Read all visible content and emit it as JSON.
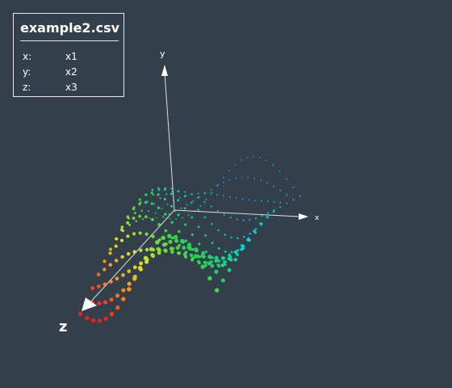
{
  "info_panel": {
    "title": "example2.csv",
    "rows": [
      {
        "key": "x:",
        "value": "x1"
      },
      {
        "key": "y:",
        "value": "x2"
      },
      {
        "key": "z:",
        "value": "x3"
      }
    ]
  },
  "axes": {
    "x_label": "x",
    "y_label": "y",
    "z_label": "z"
  },
  "colors": {
    "background": "#333f4a",
    "axis": "#ffffff",
    "panel_border": "#e6e6e6"
  },
  "chart_data": {
    "type": "scatter",
    "projection": "3d",
    "surface": "saddle-like wave z = f(x, y), colored by height (red high → green/yellow → blue low)"
  }
}
